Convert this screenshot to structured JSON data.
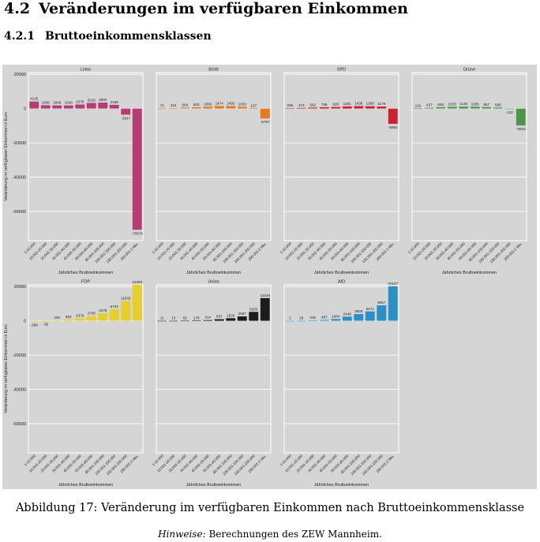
{
  "section": {
    "number": "4.2",
    "title": "Veränderungen im verfügbaren Einkommen"
  },
  "subsection": {
    "number": "4.2.1",
    "title": "Bruttoeinkommensklassen"
  },
  "caption": "Abbildung 17: Veränderung im verfügbaren Einkommen nach Bruttoeinkommensklasse",
  "note": {
    "label": "Hinweise:",
    "text": "Berechnungen des ZEW Mannheim."
  },
  "chart_data": {
    "type": "bar",
    "xlabel": "Jährliches Bruttoeinkommen",
    "ylabel": "Veränderung im verfügbaren Einkommen in Euro",
    "ylim": [
      -77000,
      21000
    ],
    "yticks": [
      20000,
      0,
      -20000,
      -40000,
      -60000
    ],
    "categories": [
      "1-10.000",
      "10.001-20.000",
      "20.001-30.000",
      "30.001-40.000",
      "40.001-55.000",
      "55.001-80.000",
      "80.001-100.000",
      "100.001-150.000",
      "150.001-250.000",
      "250.001-2 Mio."
    ],
    "panels": [
      {
        "name": "Linke",
        "color": "#b83c74",
        "values": [
          4125,
          1936,
          1848,
          1840,
          2378,
          3316,
          3500,
          2189,
          -3547,
          -70679
        ]
      },
      {
        "name": "BSW",
        "color": "#e07b22",
        "values": [
          75,
          224,
          604,
          820,
          1083,
          1474,
          1492,
          1033,
          107,
          -5767
        ]
      },
      {
        "name": "SPD",
        "color": "#cc2130",
        "values": [
          268,
          373,
          582,
          795,
          926,
          1281,
          1438,
          1360,
          1179,
          -8892
        ]
      },
      {
        "name": "Grüne",
        "color": "#4c9549",
        "values": [
          119,
          437,
          846,
          1033,
          1140,
          1055,
          867,
          585,
          -122,
          -9833
        ]
      },
      {
        "name": "FDP",
        "color": "#e5cf2b",
        "values": [
          -289,
          -36,
          292,
          863,
          1379,
          2758,
          4378,
          6734,
          11543,
          21083
        ]
      },
      {
        "name": "Union",
        "color": "#1c1c1c",
        "values": [
          11,
          13,
          63,
          178,
          414,
          937,
          1526,
          2587,
          5203,
          13248
        ]
      },
      {
        "name": "AfD",
        "color": "#2b90c4",
        "values": [
          2,
          28,
          245,
          487,
          1064,
          2449,
          3926,
          5471,
          9067,
          20107
        ]
      }
    ]
  }
}
